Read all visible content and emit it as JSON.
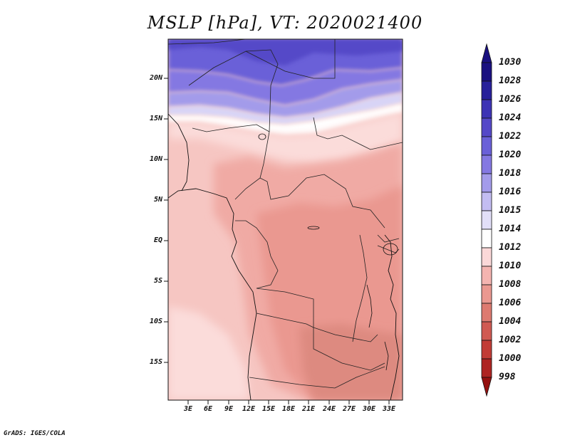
{
  "title": "MSLP [hPa], VT: 2020021400",
  "credit": "GrADS: IGES/COLA",
  "lat_labels": [
    "20N",
    "15N",
    "10N",
    "5N",
    "EQ",
    "5S",
    "10S",
    "15S"
  ],
  "lon_labels": [
    "3E",
    "6E",
    "9E",
    "12E",
    "15E",
    "18E",
    "21E",
    "24E",
    "27E",
    "30E",
    "33E"
  ],
  "colorbar": {
    "levels": [
      "1030",
      "1028",
      "1026",
      "1024",
      "1022",
      "1020",
      "1018",
      "1016",
      "1015",
      "1014",
      "1012",
      "1010",
      "1008",
      "1006",
      "1004",
      "1002",
      "1000",
      "998"
    ],
    "colors": [
      "#1a1080",
      "#28209a",
      "#3d33b5",
      "#5548c8",
      "#6a60d8",
      "#8478e2",
      "#a39bea",
      "#c3bdf2",
      "#e2dff8",
      "#ffffff",
      "#fbd8d8",
      "#f4b4b0",
      "#ea9890",
      "#dd7a70",
      "#d05a52",
      "#c23c36",
      "#ae2422",
      "#94100f"
    ]
  },
  "chart_data": {
    "type": "heatmap",
    "title": "MSLP [hPa], VT: 2020021400",
    "variable": "MSLP",
    "units": "hPa",
    "valid_time": "2020021400",
    "lon_range": [
      0,
      35
    ],
    "lat_range": [
      -20,
      25
    ],
    "lat_ticks": [
      "20N",
      "15N",
      "10N",
      "5N",
      "EQ",
      "5S",
      "10S",
      "15S"
    ],
    "lon_ticks": [
      "3E",
      "6E",
      "9E",
      "12E",
      "15E",
      "18E",
      "21E",
      "24E",
      "27E",
      "30E",
      "33E"
    ],
    "legend_placement": "right",
    "grid": false
  }
}
